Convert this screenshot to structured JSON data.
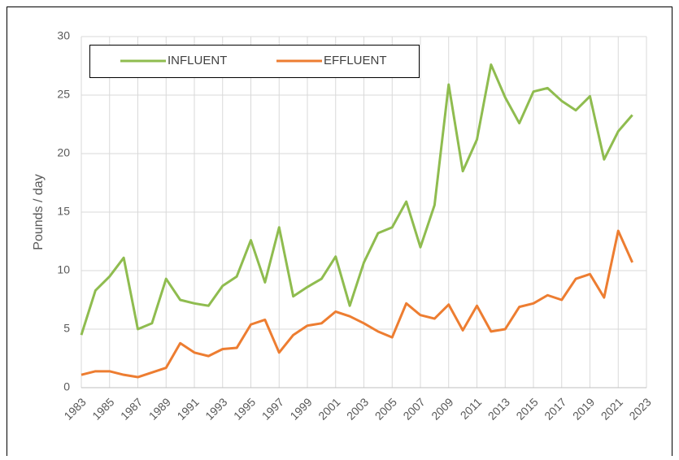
{
  "chart_data": {
    "type": "line",
    "y_label": "Pounds / day",
    "x": [
      1983,
      1984,
      1985,
      1986,
      1987,
      1988,
      1989,
      1990,
      1991,
      1992,
      1993,
      1994,
      1995,
      1996,
      1997,
      1998,
      1999,
      2000,
      2001,
      2002,
      2003,
      2004,
      2005,
      2006,
      2007,
      2008,
      2009,
      2010,
      2011,
      2012,
      2013,
      2014,
      2015,
      2016,
      2017,
      2018,
      2019,
      2020,
      2021,
      2022
    ],
    "series": [
      {
        "name": "INFLUENT",
        "color": "#8fbc4f",
        "values": [
          4.5,
          8.3,
          9.5,
          11.1,
          5.0,
          5.5,
          9.3,
          7.5,
          7.2,
          7.0,
          8.7,
          9.5,
          12.6,
          9.0,
          13.7,
          7.8,
          8.6,
          9.3,
          11.2,
          7.0,
          10.7,
          13.2,
          13.7,
          15.9,
          12.0,
          15.6,
          25.9,
          18.5,
          21.2,
          27.6,
          24.8,
          22.6,
          25.3,
          25.6,
          24.5,
          23.7,
          24.9,
          19.5,
          21.9,
          23.3
        ]
      },
      {
        "name": "EFFLUENT",
        "color": "#ed7d31",
        "values": [
          1.1,
          1.4,
          1.4,
          1.1,
          0.9,
          1.3,
          1.7,
          3.8,
          3.0,
          2.7,
          3.3,
          3.4,
          5.4,
          5.8,
          3.0,
          4.5,
          5.3,
          5.5,
          6.5,
          6.1,
          5.5,
          4.8,
          4.3,
          7.2,
          6.2,
          5.9,
          7.1,
          4.9,
          7.0,
          4.8,
          5.0,
          6.9,
          7.2,
          7.9,
          7.5,
          9.3,
          9.7,
          7.7,
          13.4,
          10.7
        ]
      }
    ],
    "xlim": [
      1983,
      2023
    ],
    "xticks": [
      1983,
      1985,
      1987,
      1989,
      1991,
      1993,
      1995,
      1997,
      1999,
      2001,
      2003,
      2005,
      2007,
      2009,
      2011,
      2013,
      2015,
      2017,
      2019,
      2021,
      2023
    ],
    "ylim": [
      0,
      30
    ],
    "yticks": [
      0,
      5,
      10,
      15,
      20,
      25,
      30
    ],
    "grid": true,
    "legend": "top-left"
  }
}
